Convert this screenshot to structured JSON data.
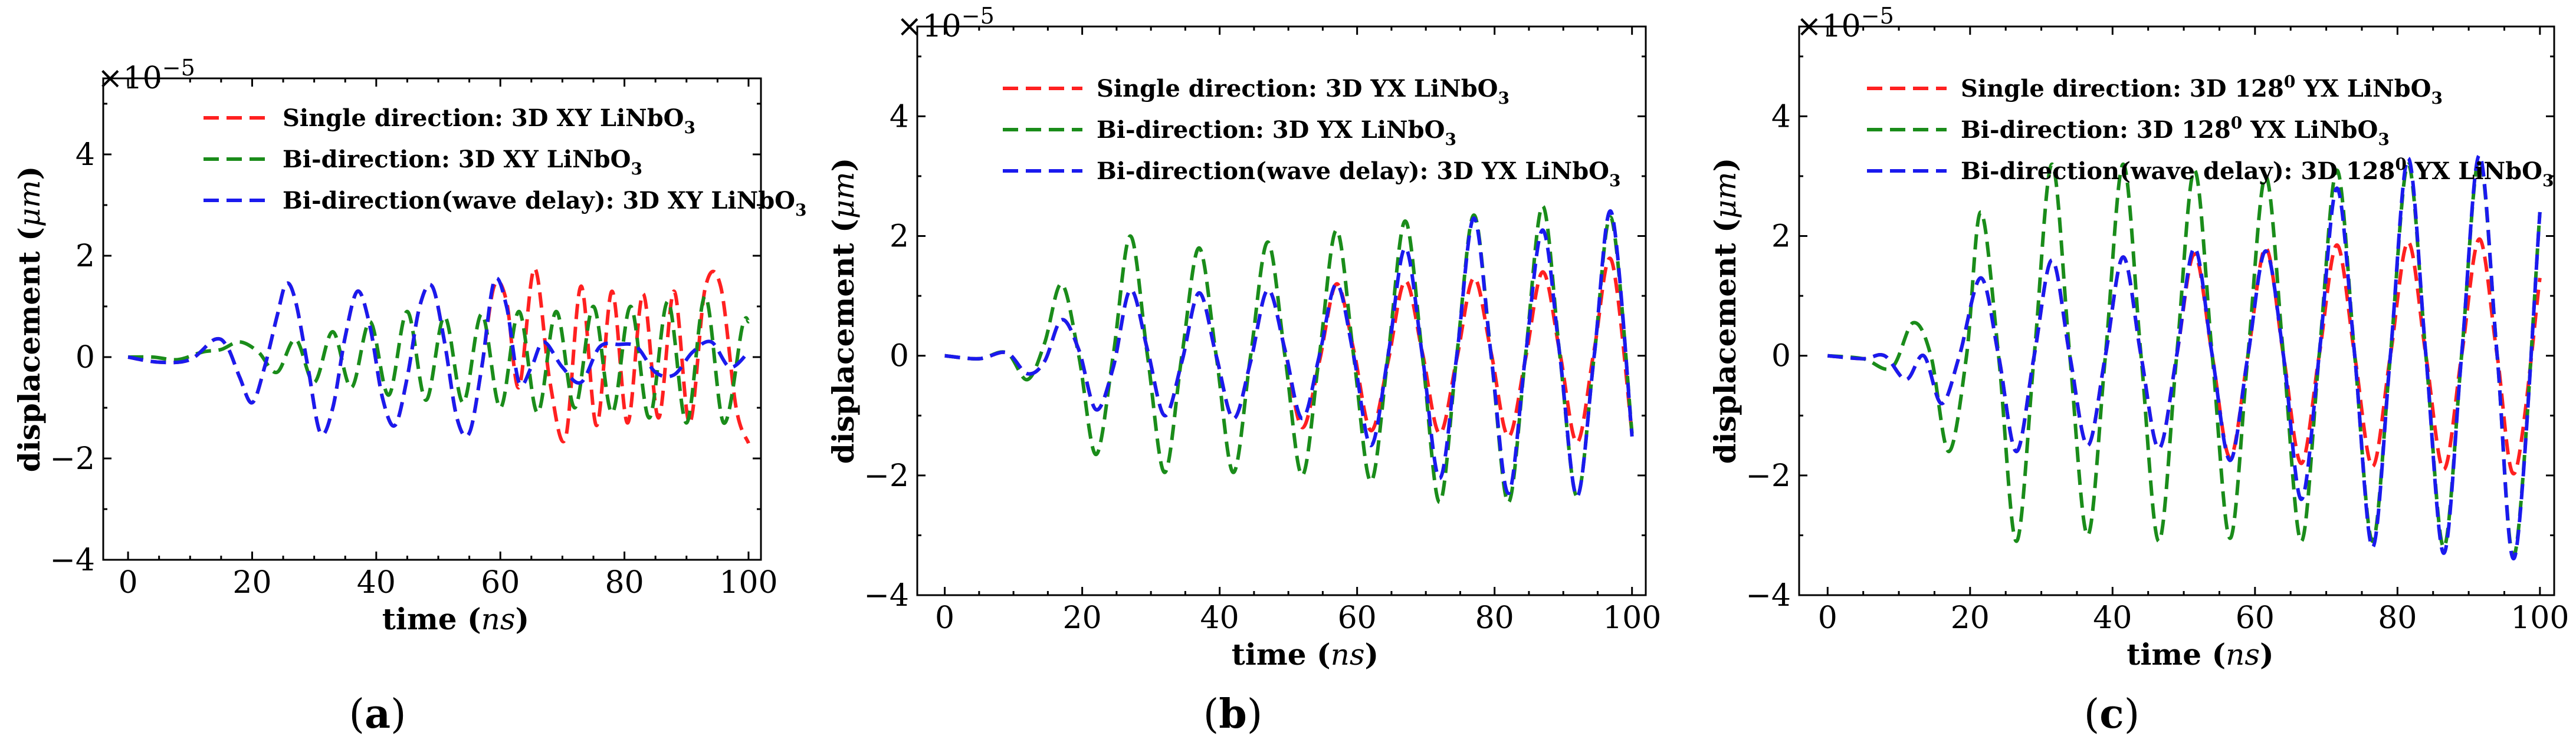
{
  "chart_data": [
    {
      "type": "line",
      "panel_label": "(a)",
      "panel_letter": "a",
      "xlabel": "time",
      "xlabel_unit": "ns",
      "ylabel": "displacement",
      "ylabel_unit": "μm",
      "y_multiplier": "×10",
      "y_exponent": "−5",
      "xlim": [
        -4,
        102
      ],
      "ylim": [
        -4,
        5.5
      ],
      "xticks": [
        0,
        20,
        40,
        60,
        80,
        100
      ],
      "yticks": [
        -4,
        -2,
        0,
        2,
        4
      ],
      "ytick_labels": [
        "−4",
        "−2",
        "0",
        "2",
        "4"
      ],
      "legend_position": "upper-right",
      "series": [
        {
          "name": "Single direction: 3D XY LiNbO3",
          "label_main": "Single direction: 3D XY LiNbO",
          "label_sub": "3",
          "color": "#ff2020",
          "x": [
            0,
            5,
            10,
            14,
            16,
            18,
            20,
            22,
            24,
            25.5,
            27,
            29,
            31,
            33,
            35,
            37,
            39,
            41,
            43,
            45,
            47,
            49,
            51,
            53,
            55,
            57,
            59,
            61,
            63,
            65.5,
            68,
            70.5,
            73,
            75.5,
            78,
            80.5,
            83,
            85.5,
            88,
            90.5,
            93,
            95.5,
            98,
            100
          ],
          "y": [
            0,
            -0.1,
            -0.05,
            0.35,
            0.2,
            -0.4,
            -0.9,
            -0.2,
            0.8,
            1.45,
            1.1,
            -0.2,
            -1.5,
            -1.0,
            0.4,
            1.3,
            0.6,
            -0.8,
            -1.35,
            -0.4,
            1.0,
            1.4,
            0.3,
            -1.2,
            -1.5,
            -0.2,
            1.4,
            1.1,
            -0.6,
            1.75,
            -0.5,
            -1.6,
            1.4,
            -1.35,
            1.3,
            -1.3,
            1.25,
            -1.2,
            1.3,
            -1.3,
            1.35,
            1.4,
            -1.0,
            -1.7
          ]
        },
        {
          "name": "Bi-direction: 3D XY LiNbO3",
          "label_main": "Bi-direction: 3D XY LiNbO",
          "label_sub": "3",
          "color": "#1a8c1a",
          "x": [
            0,
            4,
            8,
            12,
            15,
            18,
            21,
            24,
            27,
            30,
            33,
            36,
            39,
            42,
            45,
            48,
            51,
            54,
            57,
            60,
            63,
            66,
            69,
            72,
            75,
            78,
            81,
            84,
            87,
            90,
            93,
            96,
            99,
            100
          ],
          "y": [
            0,
            0,
            -0.05,
            0.1,
            0.15,
            0.3,
            0.1,
            -0.3,
            0.35,
            -0.5,
            0.5,
            -0.6,
            0.7,
            -0.75,
            0.9,
            -0.85,
            0.8,
            -0.9,
            0.85,
            -1.0,
            0.9,
            -1.1,
            0.9,
            -1.0,
            1.0,
            -1.1,
            1.0,
            -1.2,
            1.1,
            -1.3,
            1.2,
            -1.3,
            0.6,
            0.7
          ]
        },
        {
          "name": "Bi-direction(wave delay): 3D XY LiNbO3",
          "label_main": "Bi-direction(wave delay): 3D XY LiNbO",
          "label_sub": "3",
          "color": "#1a1aee",
          "x": [
            0,
            5,
            10,
            14,
            16,
            18,
            20,
            22,
            24,
            25.5,
            27,
            29,
            31,
            33,
            35,
            37,
            39,
            41,
            43,
            45,
            47,
            49,
            51,
            53,
            55,
            57,
            59,
            61,
            63,
            65,
            67,
            70,
            73,
            76,
            79,
            82,
            85,
            88,
            91,
            94,
            97,
            100
          ],
          "y": [
            0,
            -0.1,
            -0.05,
            0.35,
            0.2,
            -0.4,
            -0.9,
            -0.2,
            0.8,
            1.45,
            1.1,
            -0.2,
            -1.5,
            -1.0,
            0.4,
            1.3,
            0.6,
            -0.8,
            -1.35,
            -0.4,
            1.0,
            1.4,
            0.3,
            -1.2,
            -1.5,
            -0.2,
            1.5,
            1.0,
            -0.5,
            -0.2,
            0.3,
            -0.2,
            -0.5,
            0.2,
            0.25,
            0.2,
            -0.3,
            -0.35,
            0.1,
            0.3,
            -0.2,
            0.1
          ]
        }
      ]
    },
    {
      "type": "line",
      "panel_label": "(b)",
      "panel_letter": "b",
      "xlabel": "time",
      "xlabel_unit": "ns",
      "ylabel": "displacement",
      "ylabel_unit": "μm",
      "y_multiplier": "×10",
      "y_exponent": "−5",
      "xlim": [
        -4,
        102
      ],
      "ylim": [
        -4,
        5.5
      ],
      "xticks": [
        0,
        20,
        40,
        60,
        80,
        100
      ],
      "yticks": [
        -4,
        -2,
        0,
        2,
        4
      ],
      "ytick_labels": [
        "−4",
        "−2",
        "0",
        "2",
        "4"
      ],
      "legend_position": "upper-center",
      "series": [
        {
          "name": "Single direction: 3D YX LiNbO3",
          "label_main": "Single direction: 3D YX LiNbO",
          "label_sub": "3",
          "color": "#ff2020",
          "x": [
            0,
            5,
            9,
            12,
            14.5,
            17,
            19.5,
            22,
            24.5,
            27,
            29.5,
            32,
            34.5,
            37,
            39.5,
            42,
            44.5,
            47,
            49.5,
            52,
            54.5,
            57,
            59.5,
            62,
            64.5,
            67,
            69.5,
            72,
            74.5,
            77,
            79.5,
            82,
            84.5,
            87,
            89.5,
            92,
            94.5,
            97,
            100
          ],
          "y": [
            0,
            -0.05,
            0.05,
            -0.3,
            -0.1,
            0.6,
            0.1,
            -0.9,
            -0.2,
            1.1,
            0.1,
            -1.0,
            -0.1,
            1.05,
            0.0,
            -1.05,
            -0.1,
            1.1,
            0.1,
            -1.2,
            -0.1,
            1.2,
            0.1,
            -1.25,
            -0.1,
            1.25,
            0.05,
            -1.3,
            -0.05,
            1.3,
            0.05,
            -1.35,
            -0.05,
            1.4,
            0.05,
            -1.45,
            0.1,
            1.6,
            -1.3
          ]
        },
        {
          "name": "Bi-direction: 3D YX LiNbO3",
          "label_main": "Bi-direction: 3D YX LiNbO",
          "label_sub": "3",
          "color": "#1a8c1a",
          "x": [
            0,
            5,
            9,
            12,
            14.5,
            17,
            19.5,
            22,
            24.5,
            27,
            29.5,
            32,
            34.5,
            37,
            39.5,
            42,
            44.5,
            47,
            49.5,
            52,
            54.5,
            57,
            59.5,
            62,
            64.5,
            67,
            69.5,
            72,
            74.5,
            77,
            79.5,
            82,
            84.5,
            87,
            89.5,
            92,
            94.5,
            97,
            100
          ],
          "y": [
            0,
            -0.05,
            0.05,
            -0.4,
            0.2,
            1.2,
            0.0,
            -1.65,
            0.0,
            2.0,
            0.0,
            -1.95,
            0.0,
            1.8,
            0.0,
            -1.95,
            0.0,
            1.9,
            0.0,
            -2.0,
            0.0,
            2.1,
            0.0,
            -2.1,
            0.0,
            2.25,
            0.0,
            -2.45,
            0.0,
            2.35,
            0.0,
            -2.45,
            0.0,
            2.5,
            0.0,
            -2.35,
            0.0,
            2.3,
            -1.3
          ]
        },
        {
          "name": "Bi-direction(wave delay): 3D YX LiNbO3",
          "label_main": "Bi-direction(wave delay): 3D YX LiNbO",
          "label_sub": "3",
          "color": "#1a1aee",
          "x": [
            0,
            5,
            9,
            12,
            14.5,
            17,
            19.5,
            22,
            24.5,
            27,
            29.5,
            32,
            34.5,
            37,
            39.5,
            42,
            44.5,
            47,
            49.5,
            52,
            54.5,
            57,
            59.5,
            62,
            64.5,
            67,
            69.5,
            72,
            74.5,
            77,
            79.5,
            82,
            84.5,
            87,
            89.5,
            92,
            94.5,
            97,
            100
          ],
          "y": [
            0,
            -0.05,
            0.05,
            -0.3,
            -0.1,
            0.6,
            0.1,
            -0.9,
            -0.2,
            1.1,
            0.1,
            -1.0,
            -0.1,
            1.05,
            0.0,
            -1.05,
            -0.1,
            1.1,
            0.1,
            -1.05,
            0.0,
            1.2,
            0.0,
            -1.5,
            0.0,
            1.8,
            0.0,
            -2.05,
            0.0,
            2.3,
            0.0,
            -2.3,
            0.0,
            2.1,
            0.0,
            -2.35,
            0.0,
            2.4,
            -1.35
          ]
        }
      ]
    },
    {
      "type": "line",
      "panel_label": "(c)",
      "panel_letter": "c",
      "xlabel": "time",
      "xlabel_unit": "ns",
      "ylabel": "displacement",
      "ylabel_unit": "μm",
      "y_multiplier": "×10",
      "y_exponent": "−5",
      "xlim": [
        -4,
        102
      ],
      "ylim": [
        -4,
        5.5
      ],
      "xticks": [
        0,
        20,
        40,
        60,
        80,
        100
      ],
      "yticks": [
        -4,
        -2,
        0,
        2,
        4
      ],
      "ytick_labels": [
        "−4",
        "−2",
        "0",
        "2",
        "4"
      ],
      "legend_position": "upper-center",
      "series": [
        {
          "name": "Single direction: 3D 128⁰ YX LiNbO3",
          "label_main": "Single direction: 3D 128",
          "label_sup": "0",
          "label_rest": " YX LiNbO",
          "label_sub": "3",
          "color": "#ff2020",
          "x": [
            0,
            5,
            8,
            11,
            13.5,
            16,
            18.5,
            21.5,
            24,
            26.5,
            29,
            31.5,
            34,
            36.5,
            39,
            41.5,
            44,
            46.5,
            49,
            51.5,
            54,
            56.5,
            59,
            61.5,
            64,
            66.5,
            69,
            71.5,
            74,
            76.5,
            79,
            81.5,
            84,
            86.5,
            89,
            91.5,
            94,
            96.5,
            100
          ],
          "y": [
            0,
            -0.05,
            0.0,
            -0.4,
            0.0,
            -0.8,
            0.0,
            1.3,
            0.0,
            -1.6,
            0.0,
            1.6,
            0.0,
            -1.5,
            0.0,
            1.65,
            0.0,
            -1.55,
            0.0,
            1.7,
            0.0,
            -1.7,
            0.0,
            1.8,
            0.0,
            -1.8,
            0.0,
            1.85,
            0.0,
            -1.85,
            0.0,
            1.9,
            0.0,
            -1.9,
            0.0,
            1.95,
            0.0,
            -1.95,
            1.3
          ]
        },
        {
          "name": "Bi-direction: 3D 128⁰ YX LiNbO3",
          "label_main": "Bi-direction: 3D 128",
          "label_sup": "0",
          "label_rest": " YX LiNbO",
          "label_sub": "3",
          "color": "#1a8c1a",
          "x": [
            0,
            5,
            9,
            12,
            14.5,
            17,
            19.5,
            21.5,
            24,
            26.5,
            29,
            31.5,
            34,
            36.5,
            39,
            41.5,
            44,
            46.5,
            49,
            51.5,
            54,
            56.5,
            59,
            61.5,
            64,
            66.5,
            69,
            71.5,
            74,
            76.5,
            79,
            81.5,
            84,
            86.5,
            89,
            91.5,
            94,
            96.5,
            100
          ],
          "y": [
            0,
            -0.05,
            -0.2,
            0.55,
            0.0,
            -1.6,
            0.0,
            2.4,
            0.0,
            -3.1,
            0.0,
            3.2,
            0.0,
            -3.0,
            0.0,
            3.2,
            0.0,
            -3.1,
            0.0,
            3.1,
            0.0,
            -3.05,
            0.0,
            3.0,
            0.0,
            -3.1,
            0.0,
            3.1,
            0.0,
            -3.1,
            0.0,
            3.2,
            0.0,
            -3.2,
            0.0,
            3.3,
            0.0,
            -3.3,
            2.4
          ]
        },
        {
          "name": "Bi-direction(wave delay): 3D 128⁰ YX LiNbO3",
          "label_main": "Bi-direction(wave delay): 3D 128",
          "label_sup": "0",
          "label_rest": " YX LiNbO",
          "label_sub": "3",
          "color": "#1a1aee",
          "x": [
            0,
            5,
            8,
            11,
            13.5,
            16,
            18.5,
            21.5,
            24,
            26.5,
            29,
            31.5,
            34,
            36.5,
            39,
            41.5,
            44,
            46.5,
            49,
            51.5,
            54,
            56.5,
            59,
            61.5,
            64,
            66.5,
            69,
            71.5,
            74,
            76.5,
            79,
            81.5,
            84,
            86.5,
            89,
            91.5,
            94,
            96.5,
            100
          ],
          "y": [
            0,
            -0.05,
            0.0,
            -0.4,
            0.0,
            -0.8,
            0.0,
            1.3,
            0.0,
            -1.6,
            0.0,
            1.6,
            0.0,
            -1.5,
            0.0,
            1.65,
            0.0,
            -1.55,
            0.0,
            1.8,
            0.0,
            -1.75,
            0.0,
            1.75,
            0.0,
            -2.4,
            0.0,
            2.8,
            0.0,
            -3.2,
            0.0,
            3.3,
            0.0,
            -3.3,
            0.0,
            3.35,
            0.0,
            -3.35,
            2.4
          ]
        }
      ]
    }
  ]
}
